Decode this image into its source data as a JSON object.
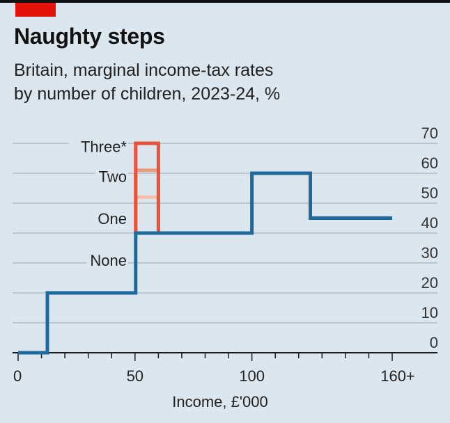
{
  "chart_data": {
    "type": "line",
    "title": "Naughty steps",
    "subtitle_line1": "Britain, marginal income-tax rates",
    "subtitle_line2": "by number of children, 2023-24, %",
    "xlabel": "Income, £'000",
    "ylabel": "",
    "xlim": [
      0,
      160
    ],
    "ylim": [
      0,
      70
    ],
    "x_tick_labels": [
      {
        "value": 0,
        "label": "0"
      },
      {
        "value": 50,
        "label": "50"
      },
      {
        "value": 100,
        "label": "100"
      },
      {
        "value": 160,
        "label": "160+"
      }
    ],
    "x_minor_ticks": [
      10,
      20,
      30,
      40,
      60,
      70,
      80,
      90,
      110,
      120,
      130,
      140,
      150
    ],
    "y_ticks": [
      0,
      10,
      20,
      30,
      40,
      50,
      60,
      70
    ],
    "grid": true,
    "series": [
      {
        "name": "None",
        "color": "#1f6a9b",
        "points": [
          [
            0,
            0
          ],
          [
            12.5,
            0
          ],
          [
            12.5,
            20
          ],
          [
            50.3,
            20
          ],
          [
            50.3,
            40
          ],
          [
            100,
            40
          ],
          [
            100,
            60
          ],
          [
            125,
            60
          ],
          [
            125,
            45
          ],
          [
            160,
            45
          ]
        ]
      },
      {
        "name": "One",
        "color": "#f7bfa8",
        "points": [
          [
            50.3,
            40
          ],
          [
            50.3,
            52
          ],
          [
            60,
            52
          ],
          [
            60,
            40
          ]
        ]
      },
      {
        "name": "Two",
        "color": "#ef9b7f",
        "points": [
          [
            50.3,
            40
          ],
          [
            50.3,
            61
          ],
          [
            60,
            61
          ],
          [
            60,
            40
          ]
        ]
      },
      {
        "name": "Three*",
        "color": "#e8523b",
        "points": [
          [
            50.3,
            40
          ],
          [
            50.3,
            70
          ],
          [
            60,
            70
          ],
          [
            60,
            40
          ]
        ]
      }
    ],
    "series_labels": [
      {
        "name": "Three*",
        "y": 68
      },
      {
        "name": "Two",
        "y": 58
      },
      {
        "name": "One",
        "y": 44
      },
      {
        "name": "None",
        "y": 30
      }
    ]
  }
}
